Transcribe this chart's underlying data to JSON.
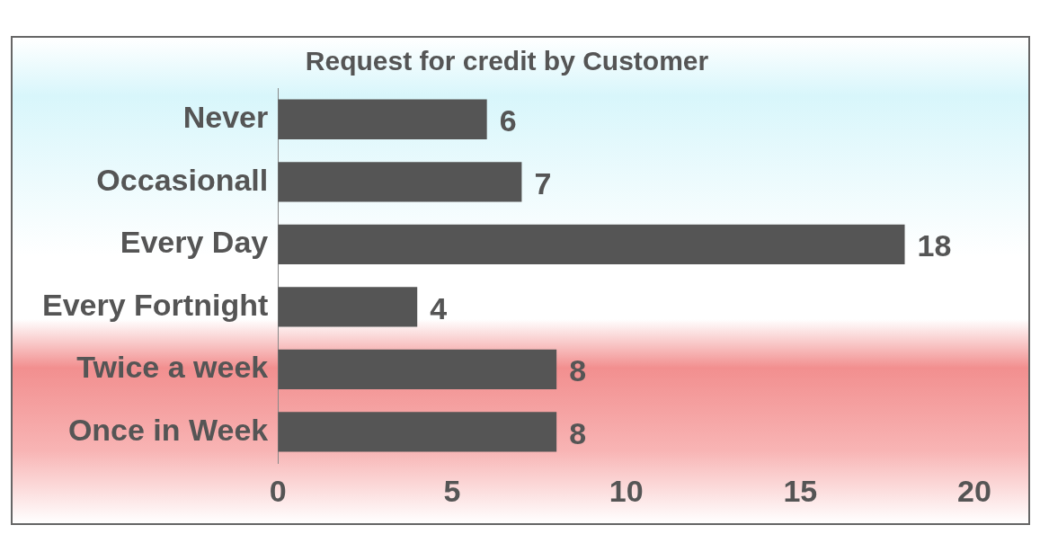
{
  "chart_data": {
    "type": "bar",
    "orientation": "horizontal",
    "title": "Request for credit by Customer",
    "categories": [
      "Never",
      "Occasionall",
      "Every Day",
      "Every Fortnight",
      "Twice a week",
      "Once in Week"
    ],
    "values": [
      6,
      7,
      18,
      4,
      8,
      8
    ],
    "color": "#555555",
    "xlim": [
      0,
      20
    ],
    "xticks": [
      0,
      5,
      10,
      15,
      20
    ],
    "grid": false,
    "legend": false,
    "data_labels": true
  }
}
